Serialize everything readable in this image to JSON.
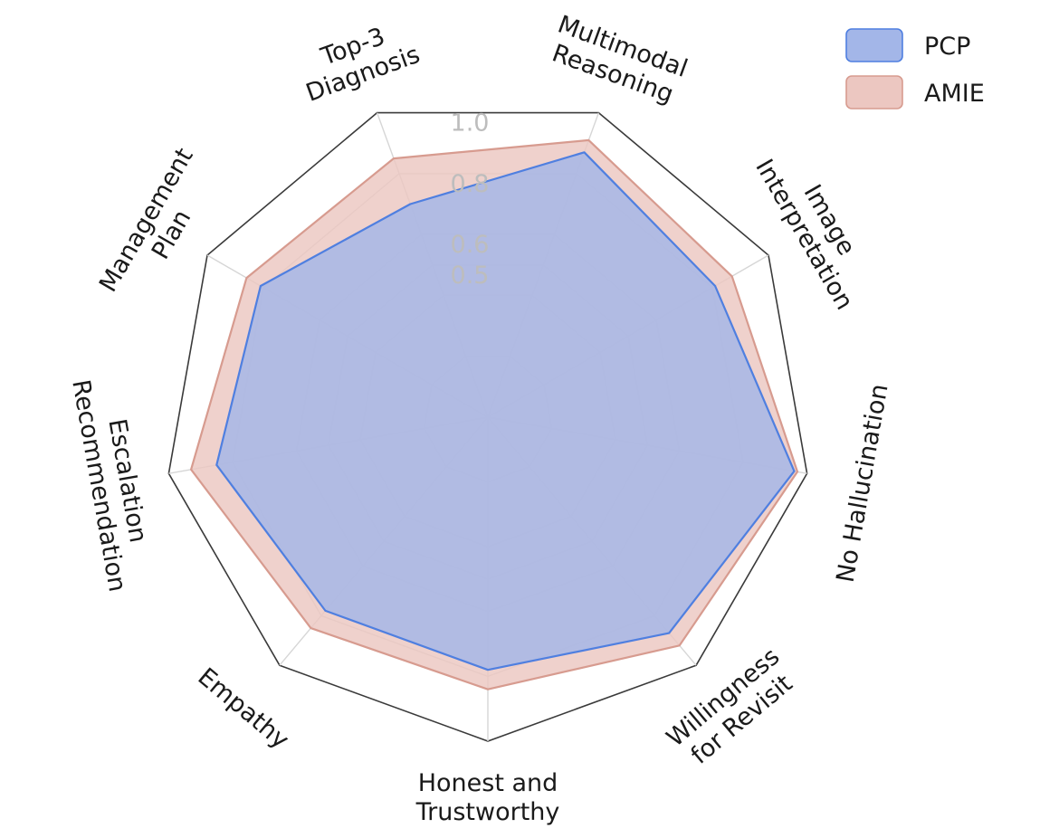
{
  "chart_data": {
    "type": "radar",
    "title": "",
    "axes": [
      "Multimodal Reasoning",
      "Image Interpretation",
      "No Hallucination",
      "Willingness for Revisit",
      "Honest and Trustworthy",
      "Empathy",
      "Escalation Recommendation",
      "Management Plan",
      "Top-3 Diagnosis"
    ],
    "r_ticks": [
      "0.5",
      "0.6",
      "0.8",
      "1.0"
    ],
    "r_tick_values": [
      0.5,
      0.6,
      0.8,
      1.0
    ],
    "r_range": [
      0,
      1.0
    ],
    "grid_values": [
      0.2,
      0.4,
      0.5,
      0.6,
      0.8,
      1.0
    ],
    "series": [
      {
        "name": "AMIE",
        "color": "#d79b8f",
        "fill": "#ecc7c1",
        "values": [
          0.91,
          0.87,
          0.97,
          0.92,
          0.84,
          0.85,
          0.93,
          0.86,
          0.85
        ]
      },
      {
        "name": "PCP",
        "color": "#4f7fe0",
        "fill": "#a3b6e8",
        "values": [
          0.87,
          0.81,
          0.96,
          0.87,
          0.78,
          0.78,
          0.85,
          0.81,
          0.7
        ]
      }
    ],
    "legend": {
      "position": "top-right",
      "order": [
        "PCP",
        "AMIE"
      ]
    },
    "grid": true
  }
}
